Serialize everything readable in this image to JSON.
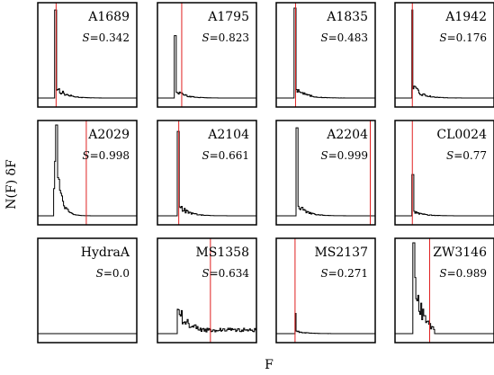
{
  "chart_data": {
    "type": "line",
    "xlabel": "F",
    "ylabel": "N(F) δF",
    "colors": {
      "histogram": "#000000",
      "marker": "#e02020",
      "frame": "#000000"
    },
    "panels": [
      {
        "name": "A1689",
        "s_label": "S",
        "s_value": "=0.342",
        "marker_x": 0.185,
        "peak_x": 0.17,
        "peak_h": 0.96,
        "shape": "sharp"
      },
      {
        "name": "A1795",
        "s_label": "S",
        "s_value": "=0.823",
        "marker_x": 0.245,
        "peak_x": 0.17,
        "peak_h": 0.68,
        "shape": "sharp"
      },
      {
        "name": "A1835",
        "s_label": "S",
        "s_value": "=0.483",
        "marker_x": 0.195,
        "peak_x": 0.18,
        "peak_h": 0.98,
        "shape": "sharp"
      },
      {
        "name": "A1942",
        "s_label": "S",
        "s_value": "=0.176",
        "marker_x": 0.175,
        "peak_x": 0.165,
        "peak_h": 0.96,
        "shape": "sharp"
      },
      {
        "name": "A2029",
        "s_label": "S",
        "s_value": "=0.998",
        "marker_x": 0.49,
        "peak_x": 0.18,
        "peak_h": 0.99,
        "shape": "broad"
      },
      {
        "name": "A2104",
        "s_label": "S",
        "s_value": "=0.661",
        "marker_x": 0.215,
        "peak_x": 0.2,
        "peak_h": 0.92,
        "shape": "sharp"
      },
      {
        "name": "A2204",
        "s_label": "S",
        "s_value": "=0.999",
        "marker_x": 0.95,
        "peak_x": 0.2,
        "peak_h": 0.96,
        "shape": "sharp"
      },
      {
        "name": "CL0024",
        "s_label": "S",
        "s_value": "=0.77",
        "marker_x": 0.175,
        "peak_x": 0.17,
        "peak_h": 0.45,
        "shape": "sharp"
      },
      {
        "name": "HydraA",
        "s_label": "S",
        "s_value": "=0.0",
        "marker_x": null,
        "peak_x": null,
        "peak_h": 0.0,
        "shape": "flat"
      },
      {
        "name": "MS1358",
        "s_label": "S",
        "s_value": "=0.634",
        "marker_x": 0.535,
        "peak_x": 0.2,
        "peak_h": 0.26,
        "shape": "spread"
      },
      {
        "name": "MS2137",
        "s_label": "S",
        "s_value": "=0.271",
        "marker_x": 0.19,
        "peak_x": 0.185,
        "peak_h": 0.22,
        "shape": "sharp"
      },
      {
        "name": "ZW3146",
        "s_label": "S",
        "s_value": "=0.989",
        "marker_x": 0.35,
        "peak_x": 0.18,
        "peak_h": 0.99,
        "shape": "wide"
      }
    ]
  }
}
